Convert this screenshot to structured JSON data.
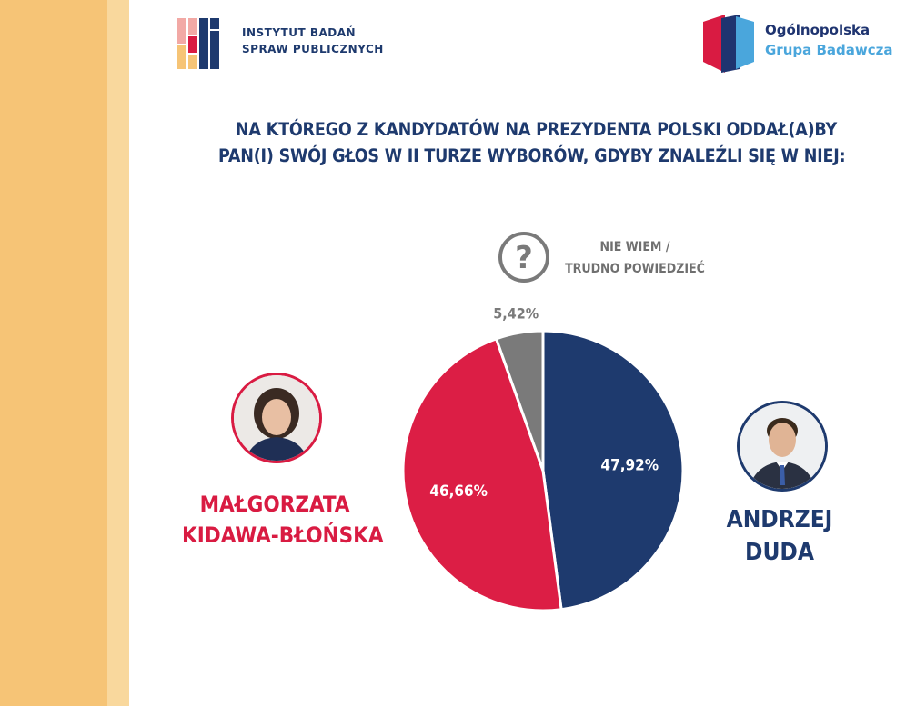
{
  "logos": {
    "left_line1": "INSTYTUT BADAŃ",
    "left_line2": "SPRAW PUBLICZNYCH",
    "right_line1": "Ogólnopolska",
    "right_line2": "Grupa Badawcza"
  },
  "question": {
    "line1": "NA KTÓREGO Z KANDYDATÓW NA PREZYDENTA POLSKI ODDAŁ(A)BY",
    "line2": "PAN(I) SWÓJ GŁOS W II TURZE WYBORÓW, GDYBY ZNALEŹLI SIĘ W NIEJ:"
  },
  "candidates": {
    "left": {
      "line1": "MAŁGORZATA",
      "line2": "KIDAWA-BŁOŃSKA"
    },
    "right": {
      "line1": "ANDRZEJ",
      "line2": "DUDA"
    }
  },
  "unsure": {
    "line1": "NIE WIEM /",
    "line2": "TRUDNO POWIEDZIEĆ"
  },
  "colors": {
    "duda": "#1e3a6e",
    "kidawa": "#dc1e45",
    "unsure": "#7a7a7a",
    "side_band": "#f6c476"
  },
  "chart_data": {
    "type": "pie",
    "title": "NA KTÓREGO Z KANDYDATÓW NA PREZYDENTA POLSKI ODDAŁ(A)BY PAN(I) SWÓJ GŁOS W II TURZE WYBORÓW, GDYBY ZNALEŹLI SIĘ W NIEJ:",
    "slices": [
      {
        "name": "ANDRZEJ DUDA",
        "value": 47.92,
        "label": "47,92%",
        "color": "#1e3a6e"
      },
      {
        "name": "MAŁGORZATA KIDAWA-BŁOŃSKA",
        "value": 46.66,
        "label": "46,66%",
        "color": "#dc1e45"
      },
      {
        "name": "NIE WIEM / TRUDNO POWIEDZIEĆ",
        "value": 5.42,
        "label": "5,42%",
        "color": "#7a7a7a"
      }
    ]
  }
}
